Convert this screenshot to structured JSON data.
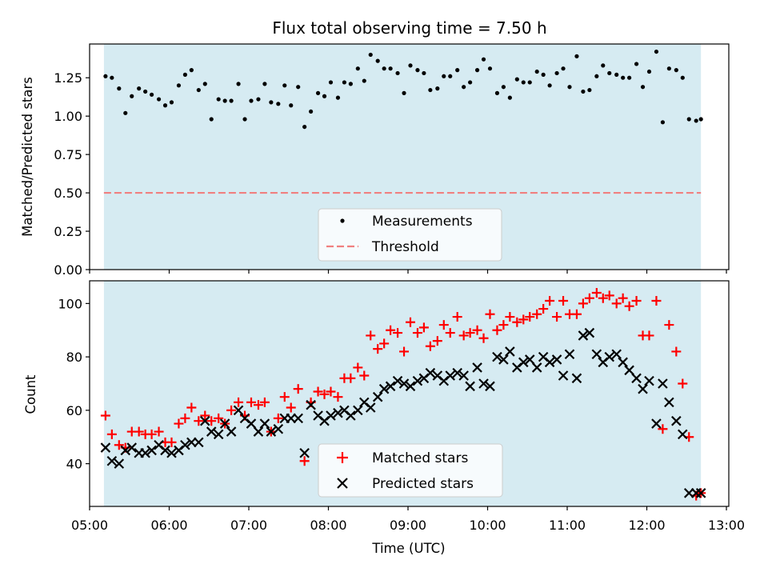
{
  "chart_data": [
    {
      "type": "scatter",
      "title": "Flux total observing time = 7.50 h",
      "xlabel": "",
      "ylabel": "Matched/Predicted stars",
      "xlim": [
        5.0,
        13.03
      ],
      "ylim": [
        0.0,
        1.47
      ],
      "yticks": [
        0.0,
        0.25,
        0.5,
        0.75,
        1.0,
        1.25
      ],
      "ytick_labels": [
        "0.00",
        "0.25",
        "0.50",
        "0.75",
        "1.00",
        "1.25"
      ],
      "xticks": [
        5,
        6,
        7,
        8,
        9,
        10,
        11,
        12,
        13
      ],
      "observing_window": [
        5.18,
        12.68
      ],
      "threshold": 0.5,
      "legend": {
        "location": "lower center",
        "entries": [
          "Measurements",
          "Threshold"
        ]
      },
      "series": [
        {
          "name": "Measurements",
          "x": [
            5.2,
            5.28,
            5.37,
            5.45,
            5.53,
            5.62,
            5.7,
            5.78,
            5.87,
            5.95,
            6.03,
            6.12,
            6.2,
            6.28,
            6.37,
            6.45,
            6.53,
            6.62,
            6.7,
            6.78,
            6.87,
            6.95,
            7.03,
            7.12,
            7.2,
            7.28,
            7.37,
            7.45,
            7.53,
            7.62,
            7.7,
            7.78,
            7.87,
            7.95,
            8.03,
            8.12,
            8.2,
            8.28,
            8.37,
            8.45,
            8.53,
            8.62,
            8.7,
            8.78,
            8.87,
            8.95,
            9.03,
            9.12,
            9.2,
            9.28,
            9.37,
            9.45,
            9.53,
            9.62,
            9.7,
            9.78,
            9.87,
            9.95,
            10.03,
            10.12,
            10.2,
            10.28,
            10.37,
            10.45,
            10.53,
            10.62,
            10.7,
            10.78,
            10.87,
            10.95,
            11.03,
            11.12,
            11.2,
            11.28,
            11.37,
            11.45,
            11.53,
            11.62,
            11.7,
            11.78,
            11.87,
            11.95,
            12.03,
            12.12,
            12.2,
            12.28,
            12.37,
            12.45,
            12.53,
            12.62,
            12.68
          ],
          "y": [
            1.26,
            1.25,
            1.18,
            1.02,
            1.13,
            1.18,
            1.16,
            1.14,
            1.11,
            1.07,
            1.09,
            1.2,
            1.27,
            1.3,
            1.17,
            1.21,
            0.98,
            1.11,
            1.1,
            1.1,
            1.21,
            0.98,
            1.1,
            1.11,
            1.21,
            1.09,
            1.08,
            1.2,
            1.07,
            1.19,
            0.93,
            1.03,
            1.15,
            1.13,
            1.22,
            1.12,
            1.22,
            1.21,
            1.31,
            1.23,
            1.4,
            1.36,
            1.31,
            1.31,
            1.28,
            1.15,
            1.33,
            1.3,
            1.28,
            1.17,
            1.18,
            1.26,
            1.26,
            1.3,
            1.19,
            1.22,
            1.3,
            1.37,
            1.31,
            1.15,
            1.19,
            1.12,
            1.24,
            1.22,
            1.22,
            1.29,
            1.27,
            1.2,
            1.28,
            1.31,
            1.19,
            1.39,
            1.16,
            1.17,
            1.26,
            1.33,
            1.28,
            1.27,
            1.25,
            1.25,
            1.34,
            1.19,
            1.29,
            1.42,
            0.96,
            1.31,
            1.3,
            1.25,
            0.98,
            0.97,
            0.98
          ]
        },
        {
          "name": "Threshold",
          "value": 0.5
        }
      ]
    },
    {
      "type": "scatter",
      "title": "",
      "xlabel": "Time (UTC)",
      "ylabel": "Count",
      "xlim": [
        5.0,
        13.03
      ],
      "ylim": [
        24.0,
        108.5
      ],
      "yticks": [
        40,
        60,
        80,
        100
      ],
      "xticks": [
        5,
        6,
        7,
        8,
        9,
        10,
        11,
        12,
        13
      ],
      "xtick_labels": [
        "05:00",
        "06:00",
        "07:00",
        "08:00",
        "09:00",
        "10:00",
        "11:00",
        "12:00",
        "13:00"
      ],
      "observing_window": [
        5.18,
        12.68
      ],
      "legend": {
        "location": "lower center",
        "entries": [
          "Matched stars",
          "Predicted stars"
        ]
      },
      "series": [
        {
          "name": "Matched stars",
          "x": [
            5.2,
            5.28,
            5.37,
            5.45,
            5.53,
            5.62,
            5.7,
            5.78,
            5.87,
            5.95,
            6.03,
            6.12,
            6.2,
            6.28,
            6.37,
            6.45,
            6.53,
            6.62,
            6.7,
            6.78,
            6.87,
            6.95,
            7.03,
            7.12,
            7.2,
            7.28,
            7.37,
            7.45,
            7.53,
            7.62,
            7.7,
            7.78,
            7.87,
            7.95,
            8.03,
            8.12,
            8.2,
            8.28,
            8.37,
            8.45,
            8.53,
            8.62,
            8.7,
            8.78,
            8.87,
            8.95,
            9.03,
            9.12,
            9.2,
            9.28,
            9.37,
            9.45,
            9.53,
            9.62,
            9.7,
            9.78,
            9.87,
            9.95,
            10.03,
            10.12,
            10.2,
            10.28,
            10.37,
            10.45,
            10.53,
            10.62,
            10.7,
            10.78,
            10.87,
            10.95,
            11.03,
            11.12,
            11.2,
            11.28,
            11.37,
            11.45,
            11.53,
            11.62,
            11.7,
            11.78,
            11.87,
            11.95,
            12.03,
            12.12,
            12.2,
            12.28,
            12.37,
            12.45,
            12.53,
            12.62,
            12.68
          ],
          "y": [
            58,
            51,
            47,
            46,
            52,
            52,
            51,
            51,
            52,
            48,
            48,
            55,
            57,
            61,
            56,
            58,
            56,
            57,
            55,
            60,
            63,
            58,
            63,
            62,
            63,
            52,
            57,
            65,
            61,
            68,
            41,
            63,
            67,
            66,
            67,
            65,
            72,
            72,
            76,
            73,
            88,
            83,
            85,
            90,
            89,
            82,
            93,
            89,
            91,
            84,
            86,
            92,
            89,
            95,
            88,
            89,
            90,
            87,
            96,
            90,
            92,
            95,
            93,
            94,
            95,
            96,
            98,
            101,
            95,
            101,
            96,
            96,
            100,
            102,
            104,
            102,
            103,
            100,
            102,
            99,
            101,
            88,
            88,
            101,
            53,
            92,
            82,
            70,
            50,
            28,
            29
          ]
        },
        {
          "name": "Predicted stars",
          "x": [
            5.2,
            5.28,
            5.37,
            5.45,
            5.53,
            5.62,
            5.7,
            5.78,
            5.87,
            5.95,
            6.03,
            6.12,
            6.2,
            6.28,
            6.37,
            6.45,
            6.53,
            6.62,
            6.7,
            6.78,
            6.87,
            6.95,
            7.03,
            7.12,
            7.2,
            7.28,
            7.37,
            7.45,
            7.53,
            7.62,
            7.7,
            7.78,
            7.87,
            7.95,
            8.03,
            8.12,
            8.2,
            8.28,
            8.37,
            8.45,
            8.53,
            8.62,
            8.7,
            8.78,
            8.87,
            8.95,
            9.03,
            9.12,
            9.2,
            9.28,
            9.37,
            9.45,
            9.53,
            9.62,
            9.7,
            9.78,
            9.87,
            9.95,
            10.03,
            10.12,
            10.2,
            10.28,
            10.37,
            10.45,
            10.53,
            10.62,
            10.7,
            10.78,
            10.87,
            10.95,
            11.03,
            11.12,
            11.2,
            11.28,
            11.37,
            11.45,
            11.53,
            11.62,
            11.7,
            11.78,
            11.87,
            11.95,
            12.03,
            12.12,
            12.2,
            12.28,
            12.37,
            12.45,
            12.53,
            12.62,
            12.68
          ],
          "y": [
            46,
            41,
            40,
            45,
            46,
            44,
            44,
            45,
            47,
            45,
            44,
            45,
            47,
            48,
            48,
            56,
            52,
            51,
            55,
            52,
            60,
            57,
            55,
            52,
            55,
            52,
            53,
            57,
            57,
            57,
            44,
            62,
            58,
            56,
            58,
            59,
            60,
            58,
            60,
            63,
            61,
            65,
            68,
            69,
            71,
            70,
            69,
            71,
            72,
            74,
            73,
            71,
            73,
            74,
            73,
            69,
            76,
            70,
            69,
            80,
            79,
            82,
            76,
            78,
            79,
            76,
            80,
            78,
            79,
            73,
            81,
            72,
            88,
            89,
            81,
            78,
            80,
            81,
            78,
            75,
            72,
            68,
            71,
            55,
            70,
            63,
            56,
            51,
            29,
            29,
            29
          ]
        }
      ]
    }
  ]
}
